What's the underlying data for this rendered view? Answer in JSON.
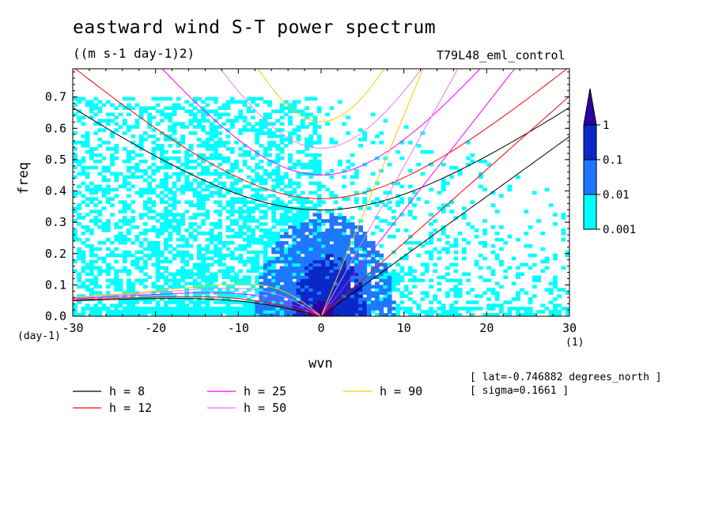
{
  "title": "eastward wind S-T power spectrum",
  "units": "((m s-1 day-1)2)",
  "run_name": "T79L48_eml_control",
  "info": {
    "lat": "[ lat=-0.746882 degrees_north ]",
    "sigma": "[ sigma=0.1661 ]"
  },
  "chart_data": {
    "type": "heatmap",
    "title": "eastward wind S-T power spectrum",
    "xlabel": "wvn",
    "ylabel": "freq",
    "x_unit_label": "(1)",
    "y_unit_label": "(day-1)",
    "xlim": [
      -30,
      30
    ],
    "ylim": [
      0,
      0.79
    ],
    "x_ticks": [
      -30,
      -20,
      -10,
      0,
      10,
      20,
      30
    ],
    "x_tick_labels": [
      "-30",
      "-20",
      "-10",
      "0",
      "10",
      "20",
      "30"
    ],
    "y_ticks": [
      0,
      0.1,
      0.2,
      0.3,
      0.4,
      0.5,
      0.6,
      0.7
    ],
    "y_tick_labels": [
      "0.0",
      "0.1",
      "0.2",
      "0.3",
      "0.4",
      "0.5",
      "0.6",
      "0.7"
    ],
    "colorbar": {
      "levels": [
        "0.001",
        "0.01",
        "0.1",
        "1"
      ],
      "colors": [
        "#00ffff",
        "#1e78ff",
        "#0a28c8",
        "#2d00a0"
      ]
    },
    "power_regions": [
      {
        "level": 0,
        "x": [
          -30,
          30
        ],
        "y": [
          0.0,
          0.7
        ],
        "coverage": "scattered"
      },
      {
        "level": 1,
        "x": [
          -8,
          8
        ],
        "y": [
          0.0,
          0.3
        ]
      },
      {
        "level": 2,
        "x": [
          -4,
          5
        ],
        "y": [
          0.0,
          0.2
        ]
      },
      {
        "level": 3,
        "x": [
          -2,
          2
        ],
        "y": [
          0.0,
          0.05
        ]
      }
    ],
    "dispersion_curves": [
      {
        "name": "h =  8",
        "h": 8,
        "color": "#000000"
      },
      {
        "name": "h = 12",
        "h": 12,
        "color": "#ff0000"
      },
      {
        "name": "h = 25",
        "h": 25,
        "color": "#ff00ff"
      },
      {
        "name": "h = 50",
        "h": 50,
        "color": "#e67de6"
      },
      {
        "name": "h = 90",
        "h": 90,
        "color": "#ffc800"
      }
    ]
  }
}
